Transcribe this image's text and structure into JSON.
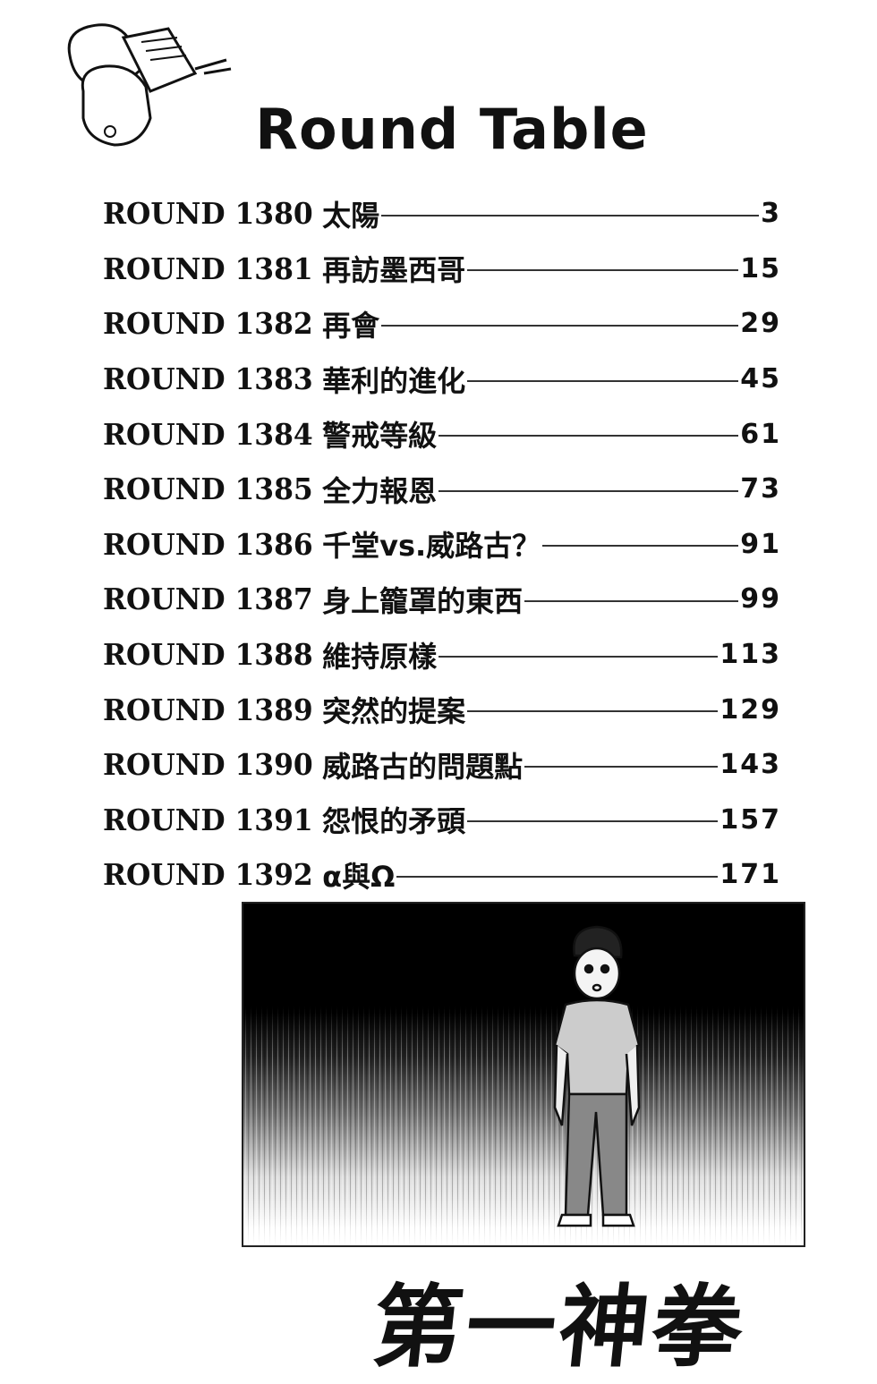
{
  "header": {
    "title": "Round Table"
  },
  "chapters": [
    {
      "label": "ROUND 1380",
      "title": "太陽",
      "page": "3"
    },
    {
      "label": "ROUND 1381",
      "title": "再訪墨西哥",
      "page": "15"
    },
    {
      "label": "ROUND 1382",
      "title": "再會",
      "page": "29"
    },
    {
      "label": "ROUND 1383",
      "title": "華利的進化",
      "page": "45"
    },
    {
      "label": "ROUND 1384",
      "title": "警戒等級",
      "page": "61"
    },
    {
      "label": "ROUND 1385",
      "title": "全力報恩",
      "page": "73"
    },
    {
      "label": "ROUND 1386",
      "title": "千堂vs.威路古？",
      "page": "91"
    },
    {
      "label": "ROUND 1387",
      "title": "身上籠罩的東西",
      "page": "99"
    },
    {
      "label": "ROUND 1388",
      "title": "維持原樣",
      "page": "113"
    },
    {
      "label": "ROUND 1389",
      "title": "突然的提案",
      "page": "129"
    },
    {
      "label": "ROUND 1390",
      "title": "威路古的問題點",
      "page": "143"
    },
    {
      "label": "ROUND 1391",
      "title": "怨恨的矛頭",
      "page": "157"
    },
    {
      "label": "ROUND 1392",
      "title": "α與Ω",
      "page": "171"
    }
  ],
  "series_logo": "第一神拳"
}
